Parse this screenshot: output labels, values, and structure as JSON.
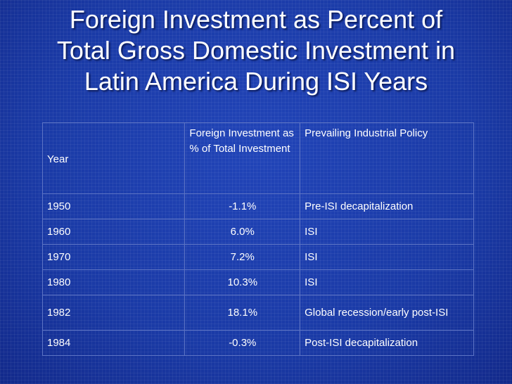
{
  "slide": {
    "title_lines": [
      "Foreign Investment as Percent of",
      "Total Gross Domestic Investment in",
      "Latin America During ISI Years"
    ]
  },
  "table": {
    "headers": [
      "Year",
      "Foreign Investment as % of Total Investment",
      "Prevailing Industrial Policy"
    ],
    "rows": [
      {
        "year": "1950",
        "pct": "-1.1%",
        "policy": "Pre-ISI decapitalization"
      },
      {
        "year": "1960",
        "pct": "6.0%",
        "policy": "ISI"
      },
      {
        "year": "1970",
        "pct": "7.2%",
        "policy": "ISI"
      },
      {
        "year": "1980",
        "pct": "10.3%",
        "policy": "ISI"
      },
      {
        "year": "1982",
        "pct": "18.1%",
        "policy": "Global recession/early post-ISI"
      },
      {
        "year": "1984",
        "pct": "-0.3%",
        "policy": "Post-ISI decapitalization"
      }
    ]
  },
  "colors": {
    "background": "#1a3aa6",
    "text": "#ffffff",
    "table_border": "#5d74c4"
  }
}
